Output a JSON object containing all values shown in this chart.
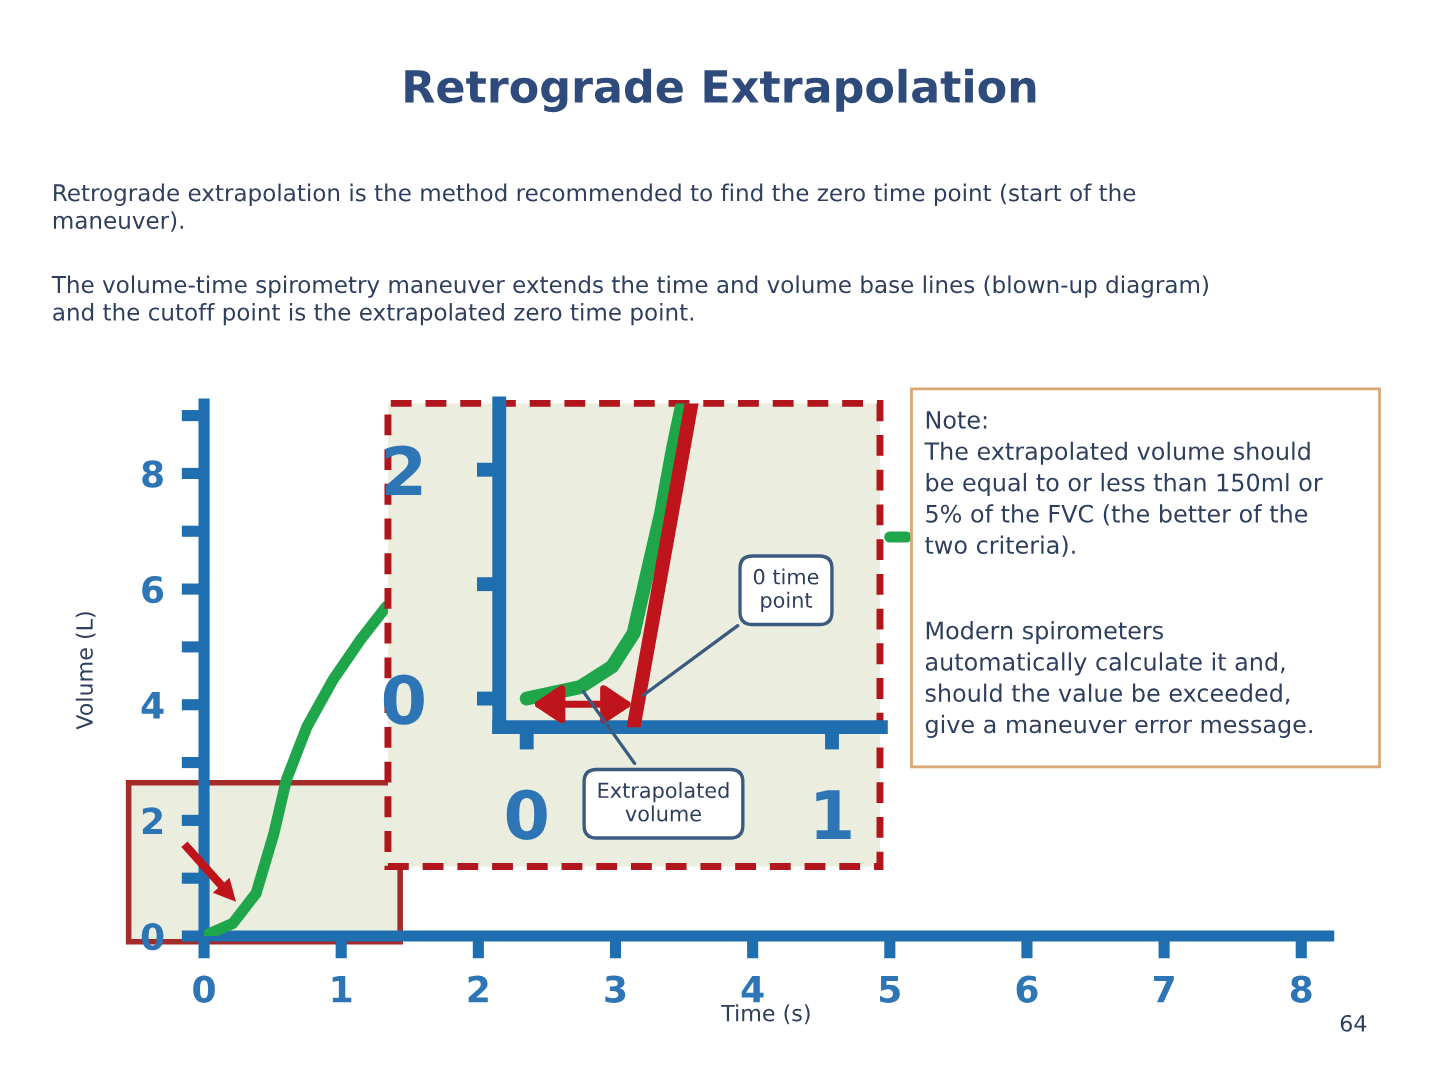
{
  "chart_data": [
    {
      "type": "line",
      "title": "Retrograde Extrapolation",
      "xlabel": "Time (s)",
      "ylabel": "Volume (L)",
      "annotations": [
        "Retrograde extrapolation is the method recommended to find the zero time point (start of the\nmaneuver).",
        "The volume-time spirometry maneuver extends the time and volume base lines (blown-up diagram)\nand the cutoff point is the extrapolated zero time point.",
        "Note:\nThe extrapolated volume should\nbe equal to or less than 150ml or\n5% of the FVC (the better of the\ntwo criteria).",
        "Modern spirometers\nautomatically calculate it and,\nshould the value be exceeded,\ngive a maneuver error message.",
        "64"
      ],
      "series": [
        {
          "color": "#1fa64a",
          "x": [
            0,
            0.21,
            0.38,
            0.51,
            0.6,
            0.75,
            0.94,
            1.14,
            1.33,
            3,
            5.0,
            5.12
          ],
          "values": [
            0,
            0.22,
            0.74,
            1.78,
            2.7,
            3.62,
            4.43,
            5.12,
            5.7,
            null,
            6.9,
            6.9
          ]
        }
      ],
      "xlim": [
        0,
        8.2
      ],
      "ylim": [
        0,
        9.2
      ],
      "xticks": [
        0,
        1,
        2,
        3,
        4,
        5,
        6,
        7,
        8
      ],
      "yticks": [
        0,
        {
          "value": 1,
          "label": null
        },
        2,
        {
          "value": 3,
          "label": null
        },
        4,
        {
          "value": 5,
          "label": null
        },
        6,
        {
          "value": 7,
          "label": null
        },
        8,
        {
          "value": 9,
          "label": null
        }
      ],
      "grid": false,
      "legend": false
    },
    {
      "type": "line",
      "annotations": [
        {
          "text": "0 time\npoint",
          "x": 0.367,
          "y": 0
        },
        {
          "text": "Extrapolated\nvolume",
          "x": 0.175,
          "y": 0.1
        }
      ],
      "series": [
        {
          "color": "#1fa64a",
          "x": [
            0,
            0.175,
            0.28,
            0.35,
            0.39,
            0.44,
            0.48,
            0.51
          ],
          "values": [
            0,
            0.1,
            0.28,
            0.57,
            1.04,
            1.62,
            2.2,
            2.58
          ]
        },
        {
          "color": "#c0141c",
          "x": [
            0.35,
            0.54
          ],
          "values": [
            -0.25,
            2.58
          ]
        }
      ],
      "xlim": [
        -0.09,
        1.16
      ],
      "ylim": [
        -0.25,
        2.58
      ],
      "xticks": [
        0,
        1
      ],
      "yticks": [
        0,
        {
          "value": 1,
          "label": null
        },
        2
      ],
      "grid": false,
      "legend": false
    }
  ]
}
